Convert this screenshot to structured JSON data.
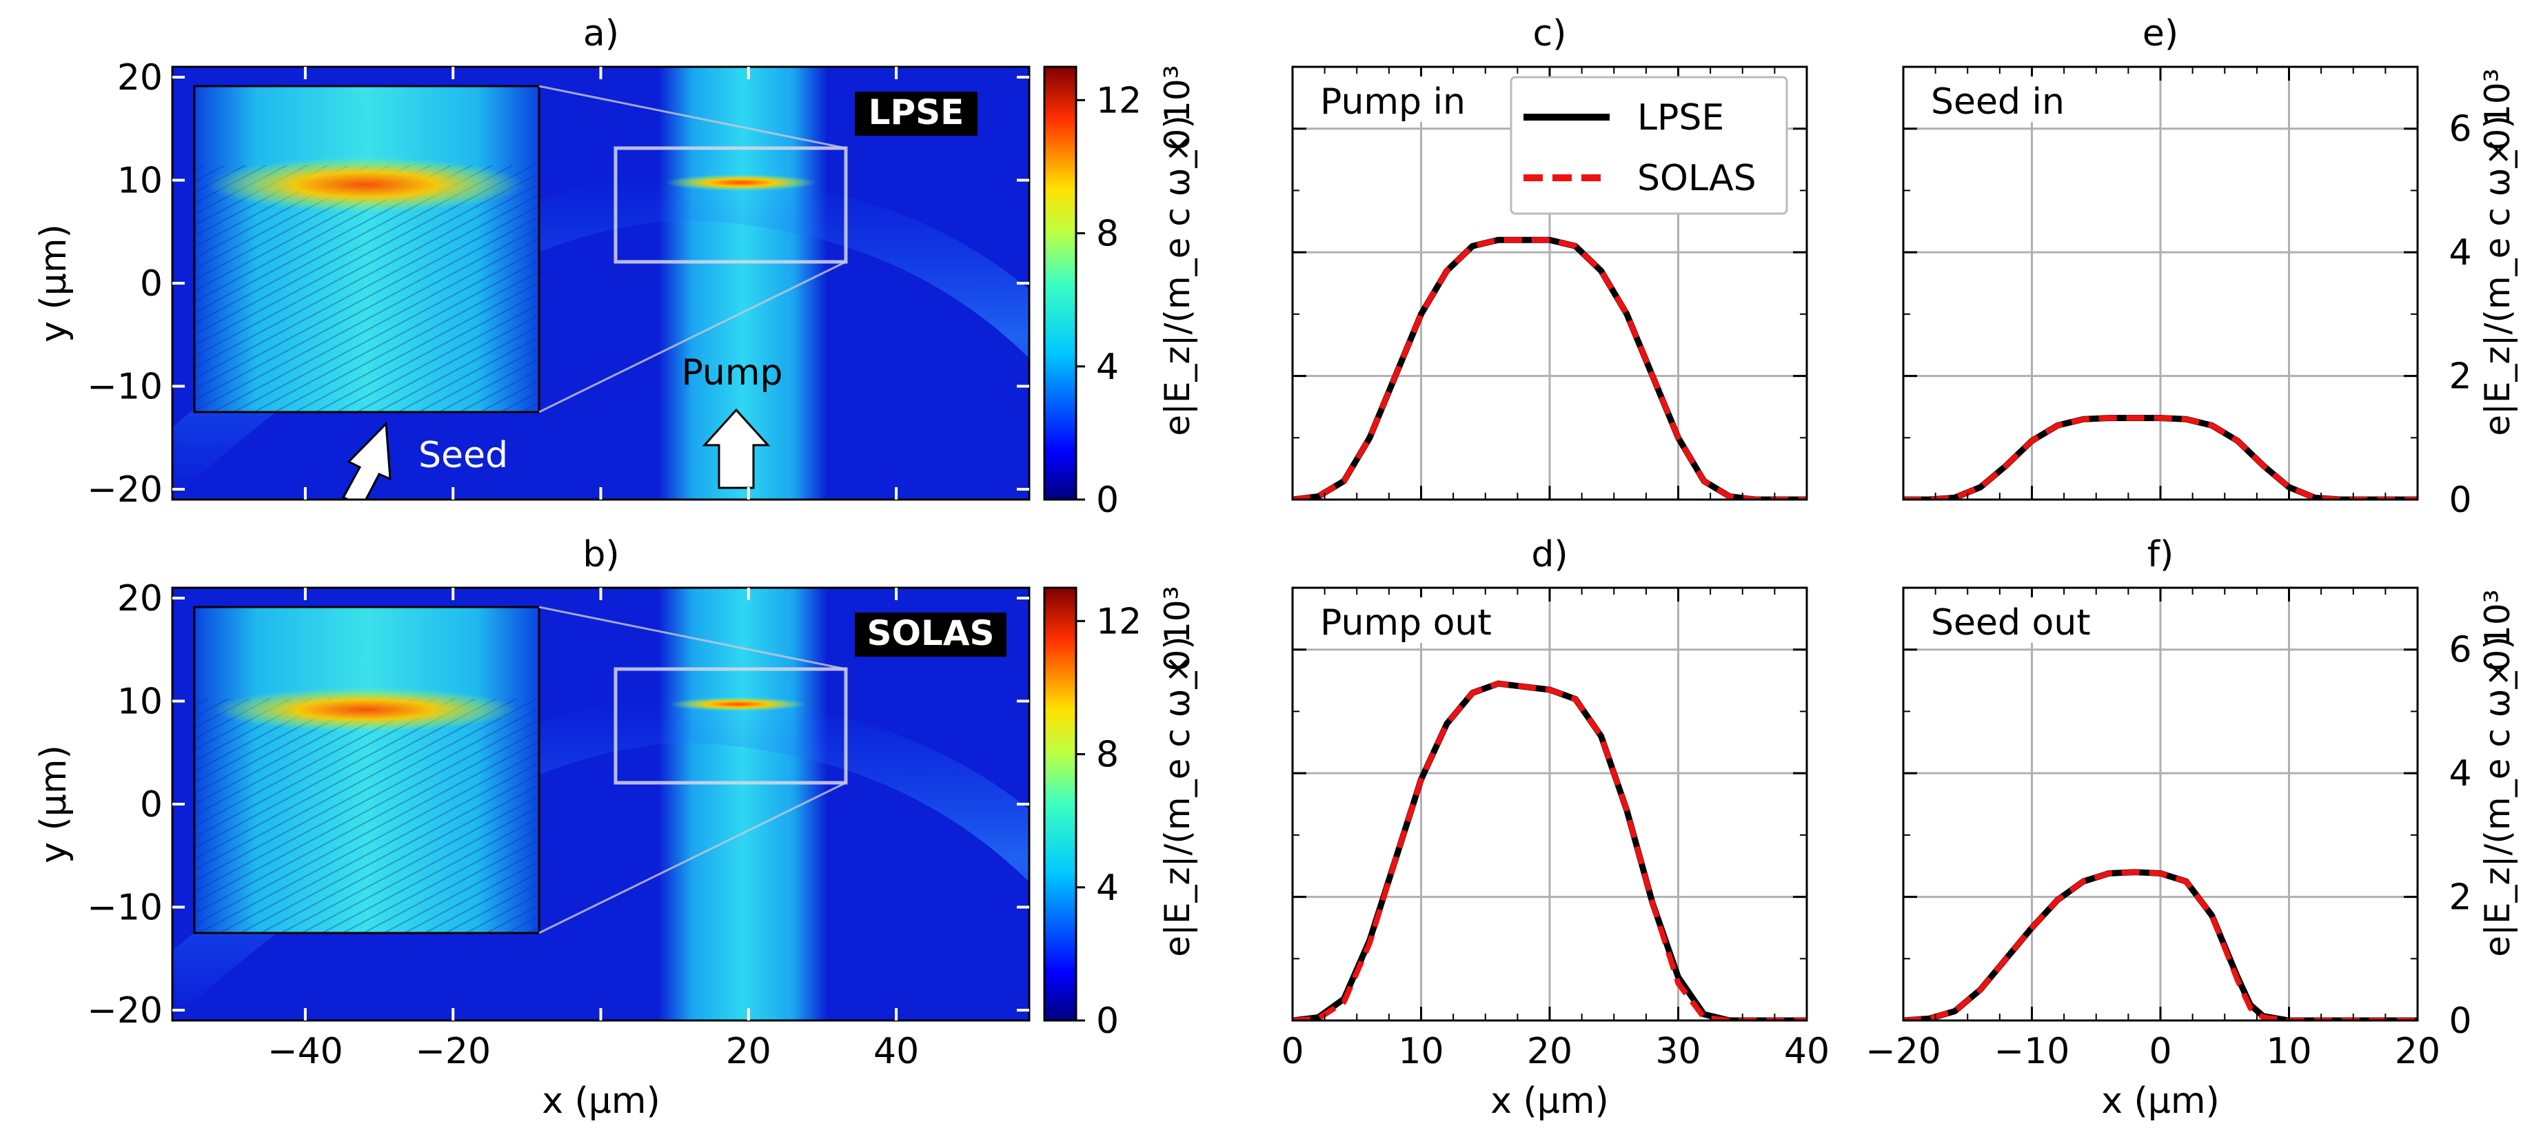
{
  "figure": {
    "colorbar_ticks": [
      "0",
      "4",
      "8",
      "12"
    ],
    "colorbar_ylabel": "e|E_z|/(m_e c ω_0)",
    "colorbar_multiplier": "× 10³",
    "heatmap_ylabel": "y (μm)",
    "heatmap_xlabel": "x (μm)",
    "heatmap_xticks": [
      "−40",
      "−20",
      "20",
      "40"
    ],
    "heatmap_yticks": [
      "20",
      "10",
      "0",
      "−10",
      "−20"
    ],
    "pump_label": "Pump",
    "seed_label": "Seed",
    "legend": {
      "lpse": "LPSE",
      "solas": "SOLAS"
    },
    "line_xlabel": "x (μm)",
    "line_ylabel": "e|E_z|/(m_e c ω_0)",
    "line_multiplier": "× 10³",
    "line_yticks": [
      "0",
      "2",
      "4",
      "6"
    ],
    "pump_xticks": [
      "0",
      "10",
      "20",
      "30",
      "40"
    ],
    "seed_xticks": [
      "−20",
      "−10",
      "0",
      "10",
      "20"
    ],
    "colors": {
      "lpse": "#000000",
      "solas": "#ee1111",
      "background_field": "#0a1fd6"
    }
  },
  "chart_data": [
    {
      "type": "heatmap",
      "panel": "a)",
      "code_label": "LPSE",
      "xlim": [
        -58,
        58
      ],
      "ylim": [
        -21,
        21
      ],
      "colorbar": {
        "min": 0,
        "max": 13,
        "colormap": "jet"
      }
    },
    {
      "type": "heatmap",
      "panel": "b)",
      "code_label": "SOLAS",
      "xlim": [
        -58,
        58
      ],
      "ylim": [
        -21,
        21
      ],
      "colorbar": {
        "min": 0,
        "max": 13,
        "colormap": "jet"
      }
    },
    {
      "type": "line",
      "panel": "c)",
      "label": "Pump in",
      "xlim": [
        0,
        40
      ],
      "ylim": [
        0,
        7
      ],
      "x": [
        0,
        2,
        4,
        6,
        8,
        10,
        12,
        14,
        16,
        18,
        20,
        22,
        24,
        26,
        28,
        30,
        32,
        34,
        36,
        40
      ],
      "series": [
        {
          "name": "LPSE",
          "values": [
            0,
            0.05,
            0.3,
            1.0,
            2.0,
            3.0,
            3.7,
            4.1,
            4.2,
            4.2,
            4.2,
            4.1,
            3.7,
            3.0,
            2.0,
            1.0,
            0.3,
            0.05,
            0,
            0
          ]
        },
        {
          "name": "SOLAS",
          "values": [
            0,
            0.05,
            0.3,
            1.0,
            2.0,
            3.0,
            3.7,
            4.1,
            4.2,
            4.2,
            4.2,
            4.1,
            3.7,
            3.0,
            2.0,
            1.0,
            0.3,
            0.05,
            0,
            0
          ]
        }
      ]
    },
    {
      "type": "line",
      "panel": "d)",
      "label": "Pump out",
      "xlim": [
        0,
        40
      ],
      "ylim": [
        0,
        7
      ],
      "x": [
        0,
        2,
        4,
        6,
        8,
        10,
        12,
        14,
        16,
        18,
        20,
        22,
        24,
        26,
        28,
        30,
        32,
        34,
        36,
        40
      ],
      "series": [
        {
          "name": "LPSE",
          "values": [
            0,
            0.05,
            0.35,
            1.3,
            2.6,
            3.9,
            4.8,
            5.3,
            5.45,
            5.4,
            5.35,
            5.2,
            4.6,
            3.4,
            1.9,
            0.7,
            0.1,
            0,
            0,
            0
          ]
        },
        {
          "name": "SOLAS",
          "values": [
            0,
            0.03,
            0.3,
            1.25,
            2.6,
            3.9,
            4.8,
            5.3,
            5.45,
            5.4,
            5.35,
            5.2,
            4.6,
            3.4,
            1.9,
            0.6,
            0.05,
            0,
            0,
            0
          ]
        }
      ]
    },
    {
      "type": "line",
      "panel": "e)",
      "label": "Seed in",
      "xlim": [
        -20,
        20
      ],
      "ylim": [
        0,
        7
      ],
      "x": [
        -20,
        -18,
        -16,
        -14,
        -12,
        -10,
        -8,
        -6,
        -4,
        -2,
        0,
        2,
        4,
        6,
        8,
        10,
        12,
        14,
        16,
        20
      ],
      "series": [
        {
          "name": "LPSE",
          "values": [
            0,
            0,
            0.03,
            0.2,
            0.55,
            0.95,
            1.2,
            1.3,
            1.32,
            1.32,
            1.32,
            1.3,
            1.2,
            0.95,
            0.55,
            0.2,
            0.03,
            0,
            0,
            0
          ]
        },
        {
          "name": "SOLAS",
          "values": [
            0,
            0,
            0.03,
            0.2,
            0.55,
            0.95,
            1.2,
            1.3,
            1.32,
            1.32,
            1.32,
            1.3,
            1.2,
            0.95,
            0.55,
            0.2,
            0.03,
            0,
            0,
            0
          ]
        }
      ]
    },
    {
      "type": "line",
      "panel": "f)",
      "label": "Seed out",
      "xlim": [
        -20,
        20
      ],
      "ylim": [
        0,
        7
      ],
      "x": [
        -20,
        -18,
        -16,
        -14,
        -12,
        -10,
        -8,
        -6,
        -4,
        -2,
        0,
        2,
        4,
        6,
        7,
        8,
        10,
        12,
        16,
        20
      ],
      "series": [
        {
          "name": "LPSE",
          "values": [
            0,
            0.03,
            0.15,
            0.5,
            1.0,
            1.5,
            1.95,
            2.25,
            2.38,
            2.4,
            2.38,
            2.25,
            1.7,
            0.7,
            0.25,
            0.07,
            0,
            0,
            0,
            0
          ]
        },
        {
          "name": "SOLAS",
          "values": [
            0,
            0.03,
            0.15,
            0.5,
            1.0,
            1.5,
            1.95,
            2.25,
            2.38,
            2.4,
            2.38,
            2.25,
            1.7,
            0.65,
            0.2,
            0.05,
            0,
            0,
            0,
            0
          ]
        }
      ]
    }
  ]
}
